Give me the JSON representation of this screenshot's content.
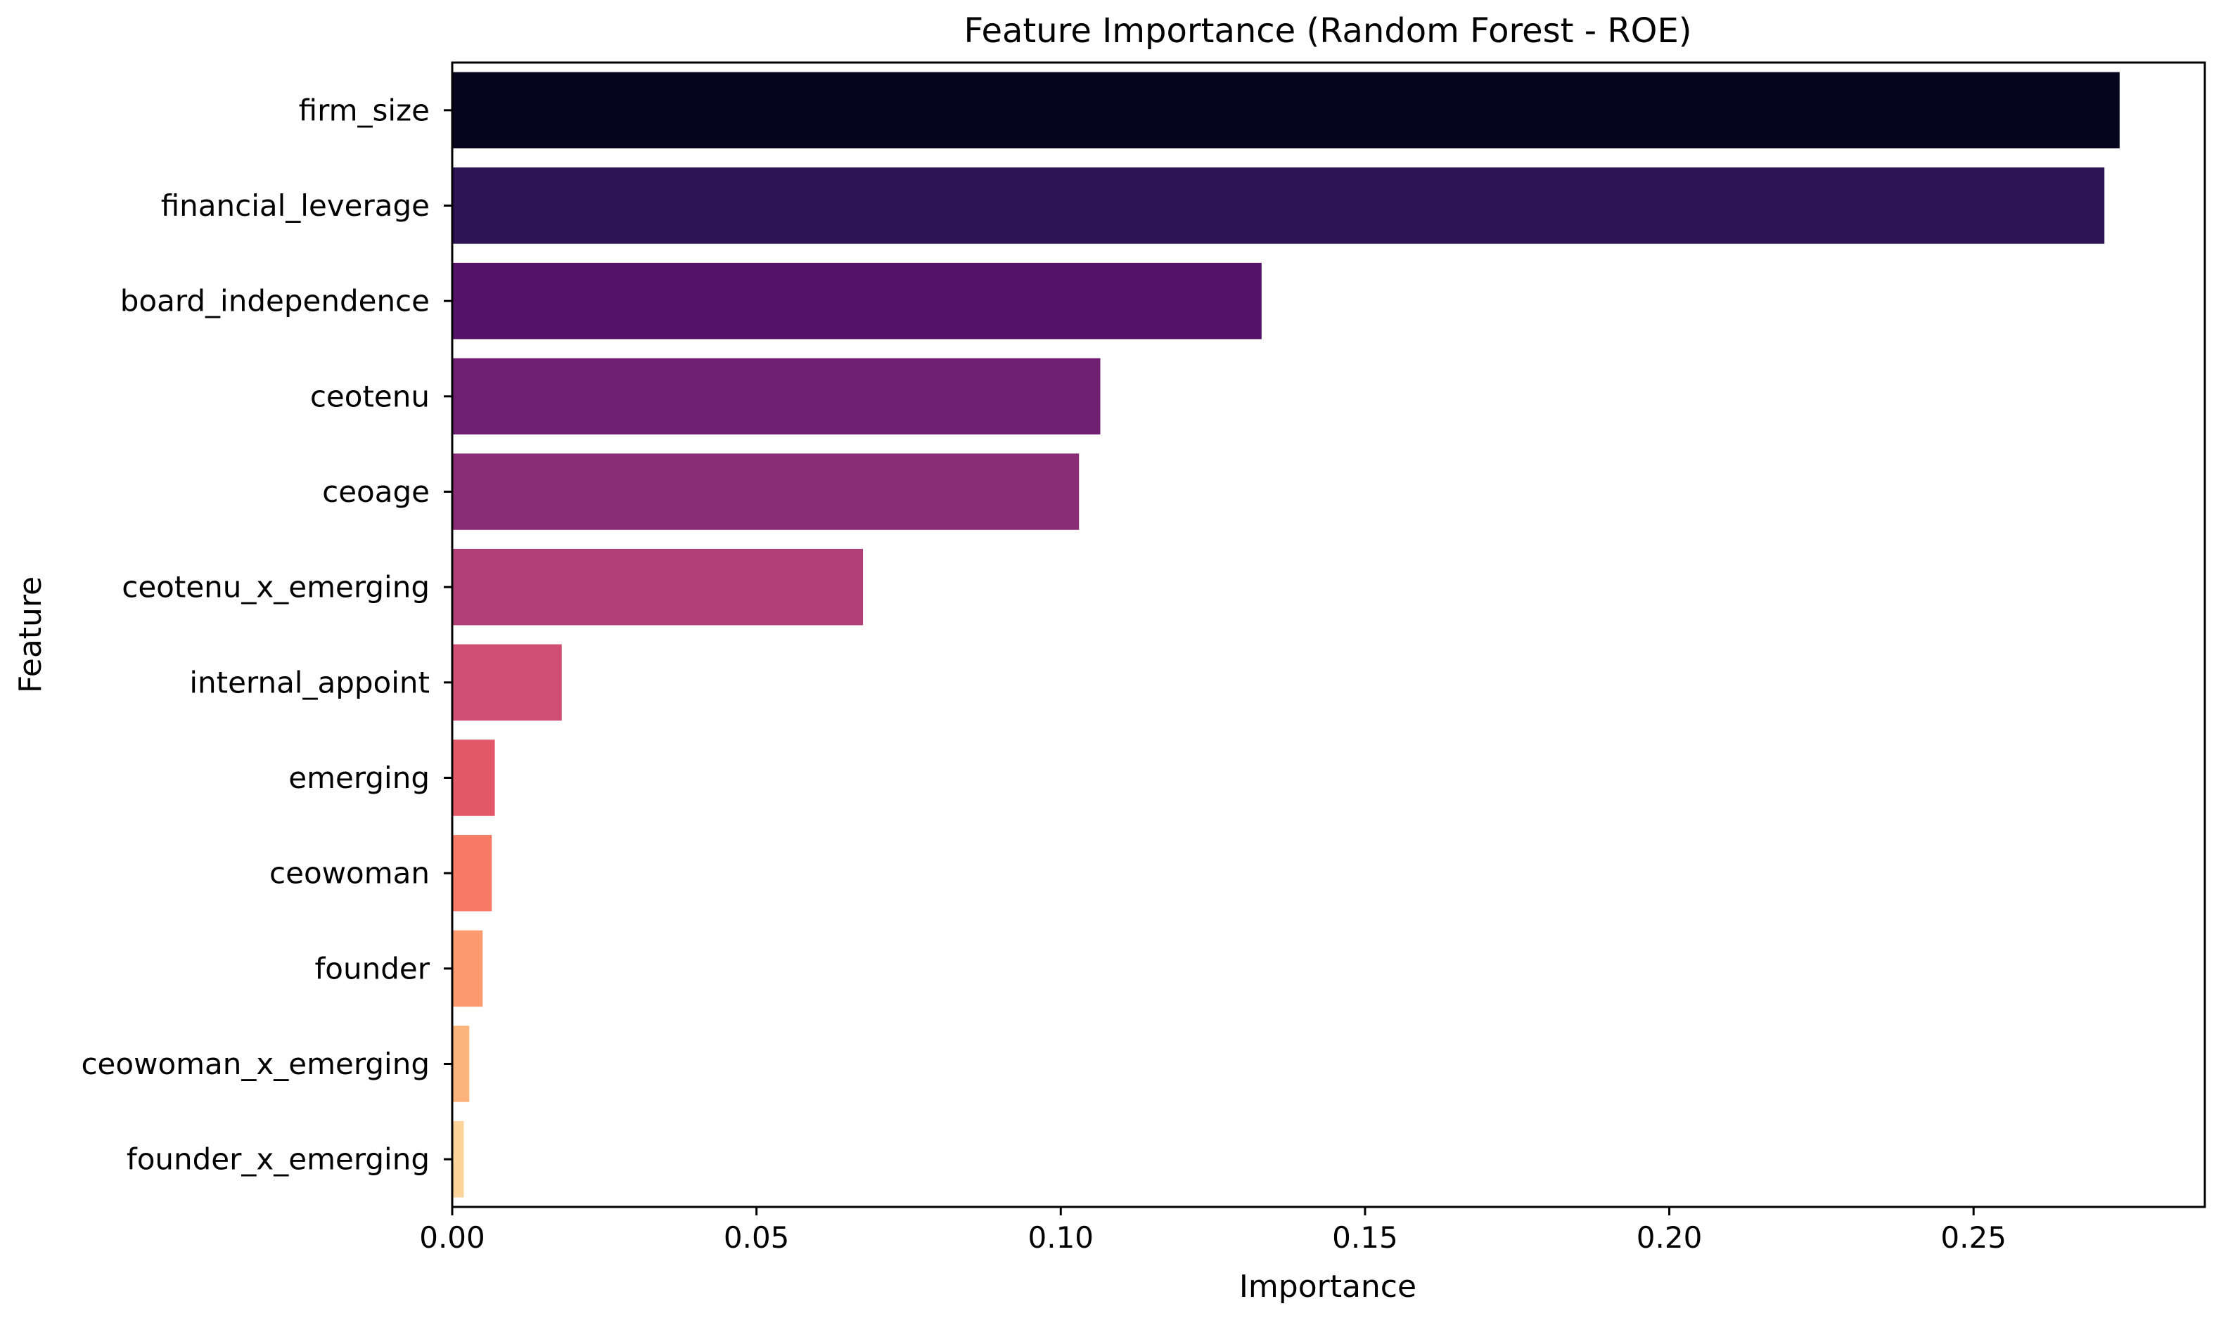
{
  "chart_data": {
    "type": "bar",
    "orientation": "horizontal",
    "title": "Feature Importance (Random Forest - ROE)",
    "xlabel": "Importance",
    "ylabel": "Feature",
    "xlim": [
      0,
      0.288
    ],
    "grid": false,
    "xticks": [
      0.0,
      0.05,
      0.1,
      0.15,
      0.2,
      0.25
    ],
    "xtick_labels": [
      "0.00",
      "0.05",
      "0.10",
      "0.15",
      "0.20",
      "0.25"
    ],
    "categories": [
      "firm_size",
      "financial_leverage",
      "board_independence",
      "ceotenu",
      "ceoage",
      "ceotenu_x_emerging",
      "internal_appoint",
      "emerging",
      "ceowoman",
      "founder",
      "ceowoman_x_emerging",
      "founder_x_emerging"
    ],
    "values": [
      0.274,
      0.2715,
      0.133,
      0.1065,
      0.103,
      0.0675,
      0.018,
      0.007,
      0.0065,
      0.005,
      0.0028,
      0.0019
    ],
    "colors": [
      "#06051e",
      "#2c1455",
      "#541366",
      "#6e1f72",
      "#8a2c76",
      "#b03f77",
      "#d14e73",
      "#e3596a",
      "#f77b65",
      "#fb9a6f",
      "#fdb47c",
      "#fdd49a"
    ]
  }
}
